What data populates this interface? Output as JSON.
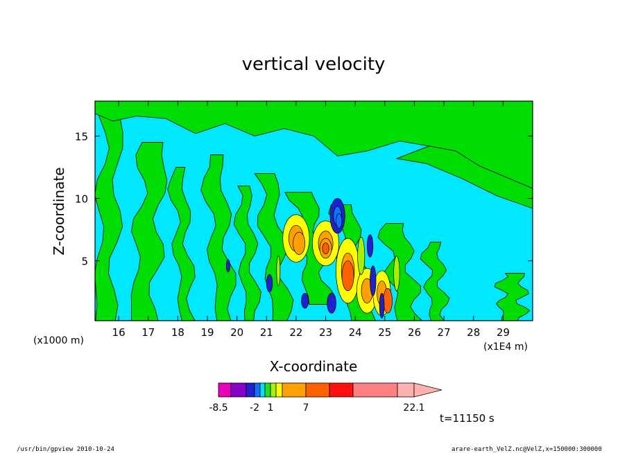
{
  "chart_data": {
    "type": "heatmap",
    "title": "vertical velocity",
    "xlabel": "X-coordinate",
    "ylabel": "Z-coordinate",
    "x_unit_left": "(x1000 m)",
    "x_unit_right": "(x1E4 m)",
    "xlim": [
      15.2,
      30
    ],
    "ylim": [
      0.2,
      17.8
    ],
    "x_ticks": [
      16,
      17,
      18,
      19,
      20,
      21,
      22,
      23,
      24,
      25,
      26,
      27,
      28,
      29
    ],
    "y_ticks": [
      5,
      10,
      15
    ],
    "colorbar": {
      "levels": [
        -8.5,
        -6,
        -4,
        -2,
        -1,
        0,
        1,
        2,
        4,
        7,
        10,
        13,
        16,
        22.1
      ],
      "labels": [
        "-8.5",
        "-2",
        "1",
        "7",
        "22.1"
      ],
      "label_levels": [
        -8.5,
        -2,
        1,
        7,
        22.1
      ],
      "colors": [
        "#e800b8",
        "#8800c8",
        "#2020d0",
        "#1070ff",
        "#00e0ff",
        "#20e020",
        "#a8f000",
        "#ffff00",
        "#ffa000",
        "#ff6000",
        "#ff1010",
        "#ff8080",
        "#ffb0b0"
      ]
    },
    "background_level_colors": {
      "weak_positive": "#00e8ff",
      "weak_negative": "#00dd00"
    },
    "time_label": "t=11150 s"
  },
  "footer": {
    "left": "/usr/bin/gpview   2010-10-24",
    "right": "arare-earth_VelZ.nc@VelZ,x=150000:300000"
  }
}
